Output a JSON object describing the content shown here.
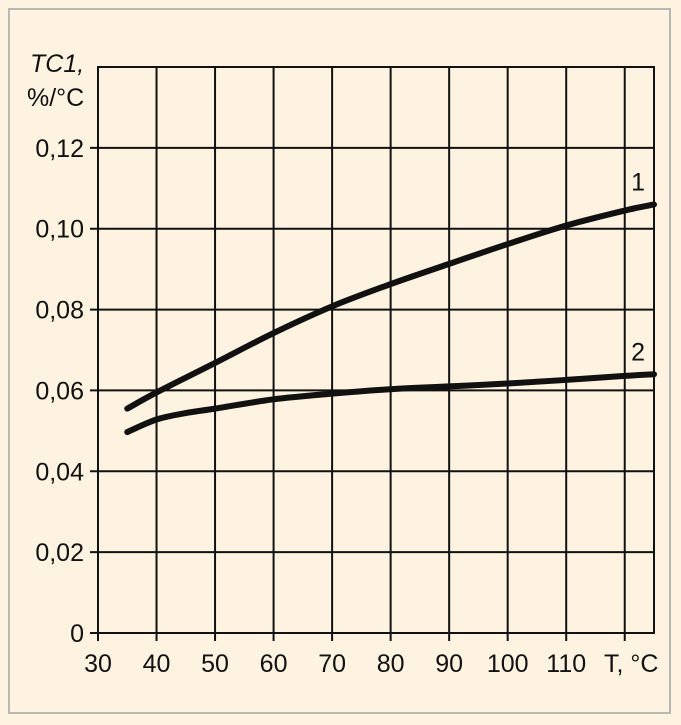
{
  "chart_data": {
    "type": "line",
    "ylabel": "TC1,",
    "ylabel_unit": "%/°C",
    "xlabel": "T, °C",
    "xlim": [
      30,
      125
    ],
    "ylim": [
      0,
      0.14
    ],
    "grid": true,
    "x_ticks": [
      30,
      40,
      50,
      60,
      70,
      80,
      90,
      100,
      110
    ],
    "x_tick_labels": [
      "30",
      "40",
      "50",
      "60",
      "70",
      "80",
      "90",
      "100",
      "110"
    ],
    "y_ticks": [
      0,
      0.02,
      0.04,
      0.06,
      0.08,
      0.1,
      0.12
    ],
    "y_tick_labels": [
      "0",
      "0,02",
      "0,04",
      "0,06",
      "0,08",
      "0,10",
      "0,12"
    ],
    "series": [
      {
        "name": "1",
        "x": [
          35,
          40,
          50,
          60,
          70,
          80,
          90,
          100,
          110,
          120,
          125
        ],
        "y": [
          0.0555,
          0.0595,
          0.0668,
          0.0742,
          0.0808,
          0.0863,
          0.0913,
          0.0962,
          0.1008,
          0.1045,
          0.106
        ]
      },
      {
        "name": "2",
        "x": [
          35,
          40,
          45,
          50,
          60,
          70,
          80,
          90,
          100,
          110,
          120,
          125
        ],
        "y": [
          0.0497,
          0.0528,
          0.0544,
          0.0555,
          0.0578,
          0.0592,
          0.0603,
          0.061,
          0.0617,
          0.0626,
          0.0636,
          0.064
        ]
      }
    ]
  }
}
